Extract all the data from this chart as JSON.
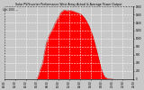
{
  "title": "Solar PV/Inverter Performance West Array Actual & Average Power Output",
  "subtitle": "Last 1000 ---",
  "bg_color": "#c8c8c8",
  "plot_bg_color": "#c8c8c8",
  "fill_color": "#ff0000",
  "line_color": "#cc0000",
  "grid_color": "#ffffff",
  "ylim": [
    0,
    1800
  ],
  "yticks": [
    0,
    200,
    400,
    600,
    800,
    1000,
    1200,
    1400,
    1600,
    1800
  ],
  "noisy_x": [
    6.0,
    6.2,
    6.4,
    6.6,
    6.8,
    7.0,
    7.2,
    7.4,
    7.6,
    7.8,
    8.0,
    8.2,
    8.4,
    8.6,
    8.8,
    9.0,
    9.2,
    9.4,
    9.6,
    9.8,
    10.0,
    10.2,
    10.4,
    10.6,
    10.8,
    11.0,
    11.2,
    11.4,
    11.6,
    11.8,
    12.0,
    12.2,
    12.4,
    12.6,
    12.8,
    13.0,
    13.2,
    13.4,
    13.6,
    13.8,
    14.0,
    14.2,
    14.4,
    14.6,
    14.8,
    15.0,
    15.2,
    15.4,
    15.6,
    15.8,
    16.0,
    16.2,
    16.4,
    16.6,
    16.8,
    17.0,
    17.2,
    17.4,
    17.6,
    17.8,
    18.0,
    18.2,
    18.4,
    18.6,
    18.8,
    19.0,
    19.2,
    19.4,
    19.6,
    19.8,
    20.0,
    20.2
  ],
  "noisy_y": [
    20,
    40,
    100,
    200,
    280,
    350,
    450,
    620,
    750,
    900,
    950,
    1050,
    1100,
    1150,
    1200,
    1250,
    1300,
    1380,
    1420,
    1480,
    1520,
    1580,
    1630,
    1660,
    1680,
    1700,
    1710,
    1700,
    1690,
    1695,
    1700,
    1700,
    1695,
    1690,
    1680,
    1670,
    1660,
    1650,
    1640,
    1630,
    1620,
    1610,
    1590,
    1560,
    1530,
    1490,
    1450,
    1400,
    1350,
    1290,
    1220,
    1150,
    1070,
    980,
    880,
    780,
    670,
    560,
    450,
    350,
    250,
    170,
    100,
    60,
    30,
    15,
    5,
    2,
    0,
    0,
    0,
    0
  ],
  "xtick_hours": [
    0,
    2,
    4,
    6,
    8,
    10,
    12,
    14,
    16,
    18,
    20,
    22,
    24
  ]
}
